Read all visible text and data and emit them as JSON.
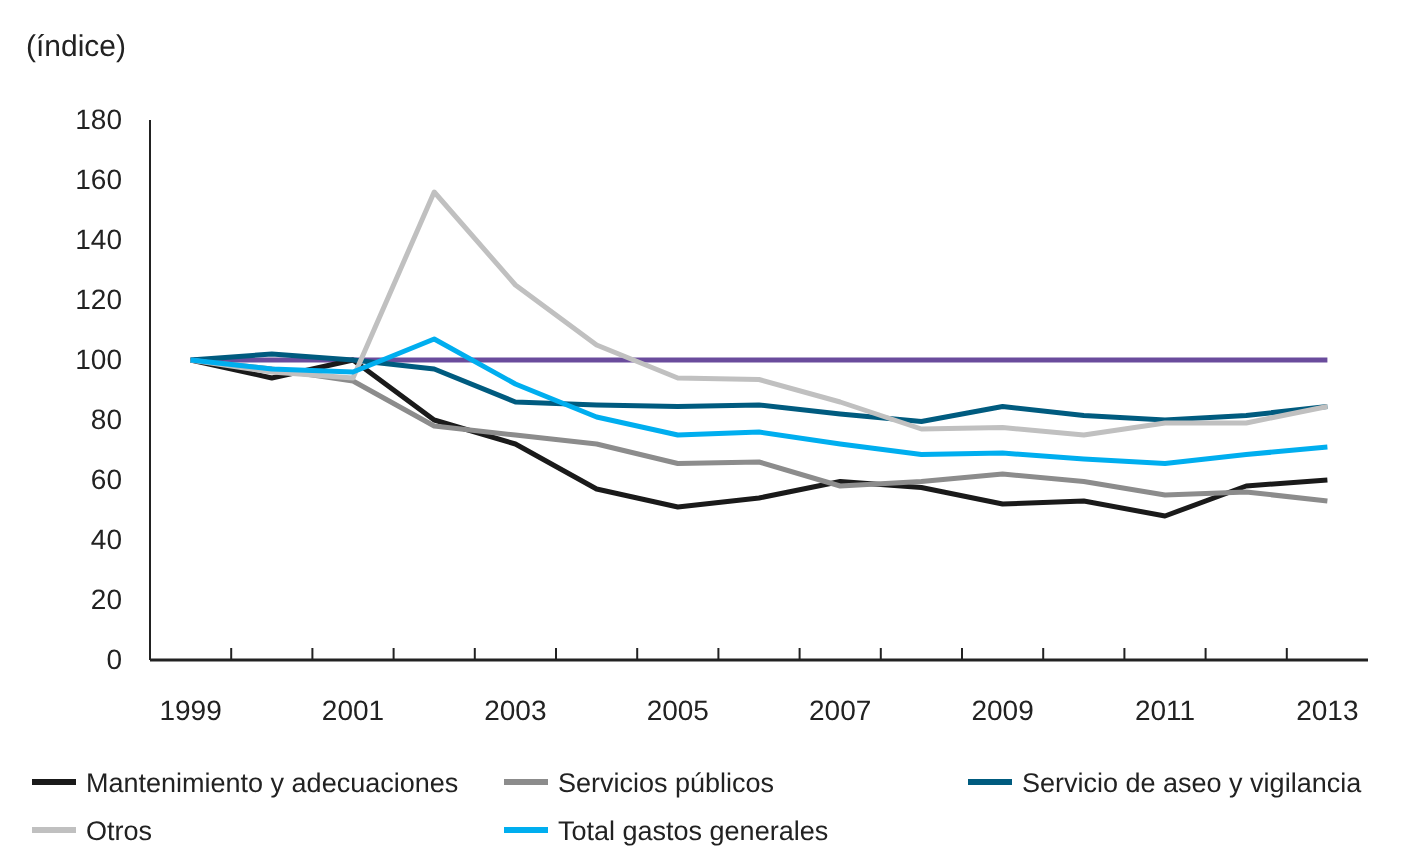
{
  "chart_data": {
    "type": "line",
    "ylabel": "(índice)",
    "categories": [
      "1999",
      null,
      "2001",
      null,
      "2003",
      null,
      "2005",
      null,
      "2007",
      null,
      "2009",
      null,
      "2011",
      null,
      "2013"
    ],
    "ylim": [
      0,
      180
    ],
    "yticks": [
      0,
      20,
      40,
      60,
      80,
      100,
      120,
      140,
      160,
      180
    ],
    "grid": false,
    "legend": "bottom",
    "marker": "none",
    "line_style": "solid",
    "ref_lines": [
      {
        "axis": "y",
        "value": 100,
        "label": null,
        "color": "#6a4c9c"
      }
    ],
    "series": [
      {
        "name": "Mantenimiento y adecuaciones",
        "color": "#1a1a1a",
        "values": [
          100,
          94,
          100,
          80,
          72,
          57,
          51,
          54,
          59.5,
          57.5,
          52,
          53,
          48,
          58,
          60
        ]
      },
      {
        "name": "Servicios públicos",
        "color": "#8c8c8c",
        "values": [
          100,
          97,
          93,
          78,
          75,
          72,
          65.5,
          66,
          58,
          59.5,
          62,
          59.5,
          55,
          56,
          53
        ]
      },
      {
        "name": "Servicio de aseo y vigilancia",
        "color": "#005b7f",
        "values": [
          100,
          102,
          100,
          97,
          86,
          85,
          84.5,
          85,
          82,
          79.5,
          84.5,
          81.5,
          80,
          81.5,
          84.5
        ]
      },
      {
        "name": "Otros",
        "color": "#c0c0c0",
        "values": [
          100,
          96,
          94,
          156,
          125,
          105,
          94,
          93.5,
          86,
          77,
          77.5,
          75,
          79,
          79,
          84.5
        ]
      },
      {
        "name": "Total gastos generales",
        "color": "#00aeef",
        "values": [
          100,
          97,
          96,
          107,
          92,
          81,
          75,
          76,
          72,
          68.5,
          69,
          67,
          65.5,
          68.5,
          71
        ]
      }
    ]
  }
}
